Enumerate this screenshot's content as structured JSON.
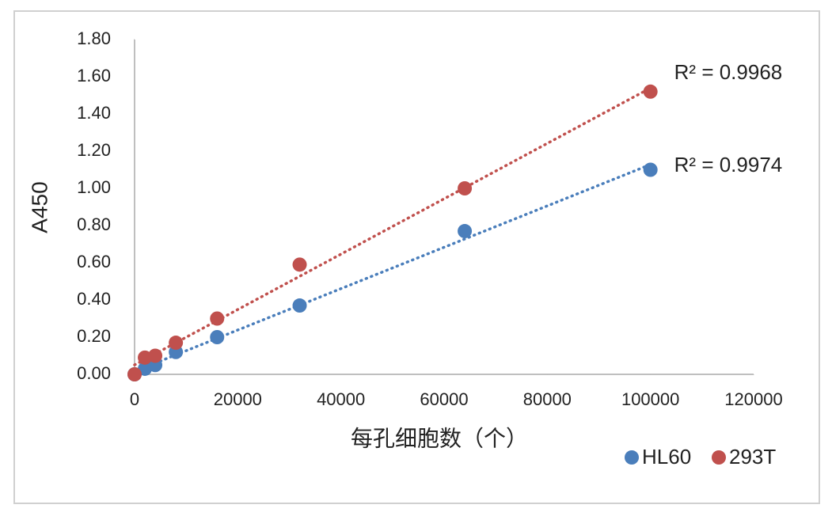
{
  "chart_data": {
    "type": "scatter",
    "x_label": "每孔细胞数（个）",
    "y_label": "A450",
    "xlim": [
      0,
      120000
    ],
    "xticks": [
      0,
      20000,
      40000,
      60000,
      80000,
      100000,
      120000
    ],
    "ylim": [
      0,
      1.8
    ],
    "yticks": [
      {
        "value": 0,
        "label": "0.00"
      },
      {
        "value": 0.2,
        "label": "0.20"
      },
      {
        "value": 0.4,
        "label": "0.40"
      },
      {
        "value": 0.6,
        "label": "0.60"
      },
      {
        "value": 0.8,
        "label": "0.80"
      },
      {
        "value": 1.0,
        "label": "1.00"
      },
      {
        "value": 1.2,
        "label": "1.20"
      },
      {
        "value": 1.4,
        "label": "1.40"
      },
      {
        "value": 1.6,
        "label": "1.60"
      },
      {
        "value": 1.8,
        "label": "1.80"
      }
    ],
    "trendline": "linear",
    "legend": "bottom-right",
    "series": [
      {
        "name": "HL60",
        "color": "#4a7ebb",
        "x": [
          0,
          2000,
          4000,
          8000,
          16000,
          32000,
          64000,
          100000
        ],
        "values": [
          0,
          0.03,
          0.05,
          0.12,
          0.2,
          0.37,
          0.77,
          1.1
        ],
        "r2_label": "R² = 0.9974"
      },
      {
        "name": "293T",
        "color": "#c0504d",
        "x": [
          0,
          2000,
          4000,
          8000,
          16000,
          32000,
          64000,
          100000
        ],
        "values": [
          0,
          0.09,
          0.1,
          0.17,
          0.3,
          0.59,
          1.0,
          1.52
        ],
        "r2_label": "R² = 0.9968"
      }
    ]
  }
}
